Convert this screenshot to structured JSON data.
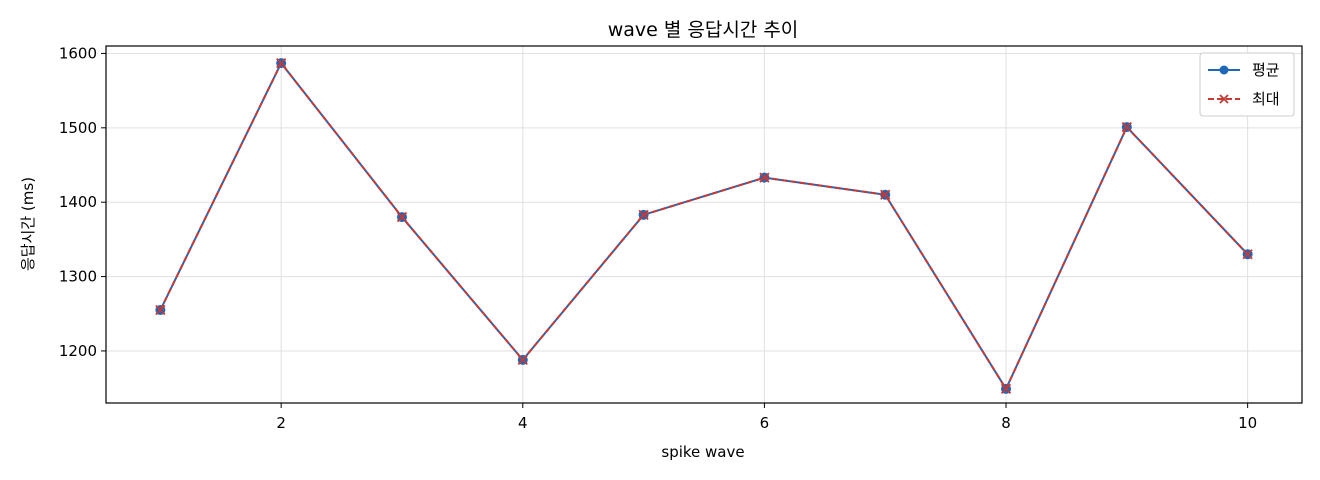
{
  "chart_data": {
    "type": "line",
    "title": "wave 별 응답시간 추이",
    "xlabel": "spike wave",
    "ylabel": "응답시간 (ms)",
    "x": [
      1,
      2,
      3,
      4,
      5,
      6,
      7,
      8,
      9,
      10
    ],
    "xlim": [
      0.55,
      10.45
    ],
    "ylim": [
      1130,
      1610
    ],
    "xticks": [
      2,
      4,
      6,
      8,
      10
    ],
    "yticks": [
      1200,
      1300,
      1400,
      1500,
      1600
    ],
    "grid": true,
    "legend_position": "top-right",
    "series": [
      {
        "name": "평균",
        "color": "#1f67b9",
        "marker": "circle",
        "line_style": "solid",
        "values": [
          1255,
          1587,
          1380,
          1188,
          1383,
          1433,
          1410,
          1149,
          1501,
          1330
        ]
      },
      {
        "name": "최대",
        "color": "#c43a35",
        "marker": "x",
        "line_style": "dashed",
        "values": [
          1255,
          1587,
          1380,
          1188,
          1383,
          1433,
          1410,
          1149,
          1501,
          1330
        ]
      }
    ]
  }
}
